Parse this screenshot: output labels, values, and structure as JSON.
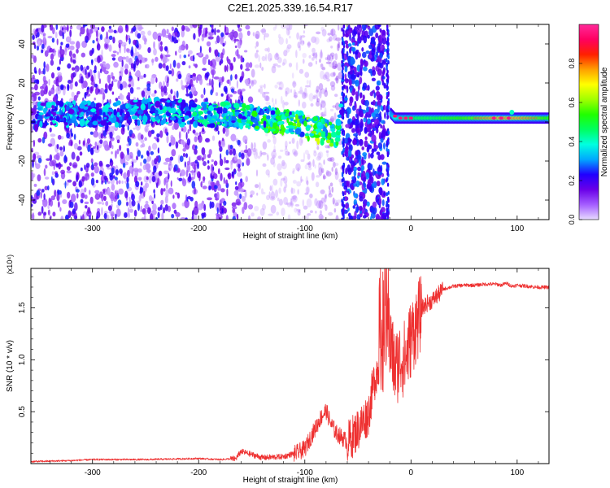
{
  "title": "C2E1.2025.339.16.54.R17",
  "chart_data": [
    {
      "type": "heatmap",
      "id": "spectrogram",
      "xlabel": "Height of straight line (km)",
      "ylabel": "Frequency (Hz)",
      "xlim": [
        -358,
        130
      ],
      "ylim": [
        -50,
        50
      ],
      "xticks": [
        -300,
        -200,
        -100,
        0,
        100
      ],
      "xtick_labels": [
        "-300",
        "-200",
        "-100",
        "0",
        "100"
      ],
      "yticks": [
        -40,
        -20,
        0,
        20,
        40
      ],
      "ytick_labels": [
        "-40",
        "-20",
        "0",
        "20",
        "40"
      ],
      "colorbar": {
        "label": "Normalized spectral amplitude",
        "range": [
          0.0,
          1.0
        ],
        "ticks": [
          0.0,
          0.2,
          0.4,
          0.6,
          0.8
        ],
        "tick_labels": [
          "0.0",
          "0.2",
          "0.4",
          "0.6",
          "0.8"
        ],
        "colors": [
          "#e8dcff",
          "#a45dff",
          "#6a00e8",
          "#2000ff",
          "#00a8ff",
          "#00ffe0",
          "#00ff60",
          "#20ff00",
          "#a0ff00",
          "#ffff00",
          "#ffa000",
          "#ff2000",
          "#ff0060",
          "#ff2a9a"
        ]
      },
      "signal_track": {
        "x": [
          -358,
          -330,
          -300,
          -270,
          -245,
          -220,
          -200,
          -180,
          -160,
          -140,
          -120,
          -100,
          -90,
          -80,
          -70,
          -65,
          -20,
          -15,
          0,
          20,
          40,
          60,
          80,
          100,
          120,
          130
        ],
        "freq": [
          3,
          4,
          4,
          4,
          6,
          5,
          4,
          4,
          3,
          2,
          0,
          -2,
          -4,
          -5,
          -7,
          6,
          5,
          2,
          2,
          2,
          2,
          2,
          2,
          2,
          2,
          2
        ],
        "amplitude": [
          0.3,
          0.35,
          0.35,
          0.3,
          0.35,
          0.4,
          0.4,
          0.45,
          0.45,
          0.5,
          0.5,
          0.55,
          0.6,
          0.55,
          0.5,
          0.3,
          0.3,
          0.4,
          0.5,
          0.5,
          0.55,
          0.6,
          0.7,
          0.7,
          0.6,
          0.55
        ]
      },
      "broadband_region": {
        "x_from": -65,
        "x_to": -21
      }
    },
    {
      "type": "line",
      "id": "snr",
      "xlabel": "Height of straight line (km)",
      "ylabel": "SNR (10 * v/v)",
      "y_multiplier": "(x10⁴)",
      "xlim": [
        -358,
        130
      ],
      "ylim": [
        0,
        1.88
      ],
      "xticks": [
        -300,
        -200,
        -100,
        0,
        100
      ],
      "xtick_labels": [
        "-300",
        "-200",
        "-100",
        "0",
        "100"
      ],
      "yticks": [
        0.5,
        1.0,
        1.5
      ],
      "ytick_labels": [
        "0.5",
        "1.0",
        "1.5"
      ],
      "color": "#ee3030",
      "series": [
        {
          "name": "SNR",
          "x": [
            -358,
            -320,
            -300,
            -280,
            -250,
            -200,
            -180,
            -165,
            -160,
            -150,
            -140,
            -120,
            -110,
            -100,
            -95,
            -90,
            -85,
            -80,
            -75,
            -70,
            -60,
            -50,
            -40,
            -35,
            -30,
            -25,
            -22,
            -20,
            -15,
            -10,
            -5,
            0,
            5,
            10,
            15,
            20,
            25,
            30,
            40,
            50,
            60,
            70,
            80,
            85,
            90,
            95,
            100,
            110,
            120,
            130
          ],
          "y": [
            0.02,
            0.03,
            0.04,
            0.04,
            0.04,
            0.05,
            0.04,
            0.05,
            0.12,
            0.09,
            0.06,
            0.07,
            0.1,
            0.15,
            0.25,
            0.35,
            0.45,
            0.52,
            0.38,
            0.3,
            0.22,
            0.35,
            0.5,
            0.8,
            1.0,
            1.15,
            1.4,
            1.22,
            0.95,
            1.05,
            1.05,
            1.25,
            1.38,
            1.5,
            1.55,
            1.58,
            1.63,
            1.68,
            1.71,
            1.72,
            1.72,
            1.73,
            1.73,
            1.72,
            1.74,
            1.71,
            1.72,
            1.71,
            1.7,
            1.7
          ]
        }
      ]
    }
  ]
}
